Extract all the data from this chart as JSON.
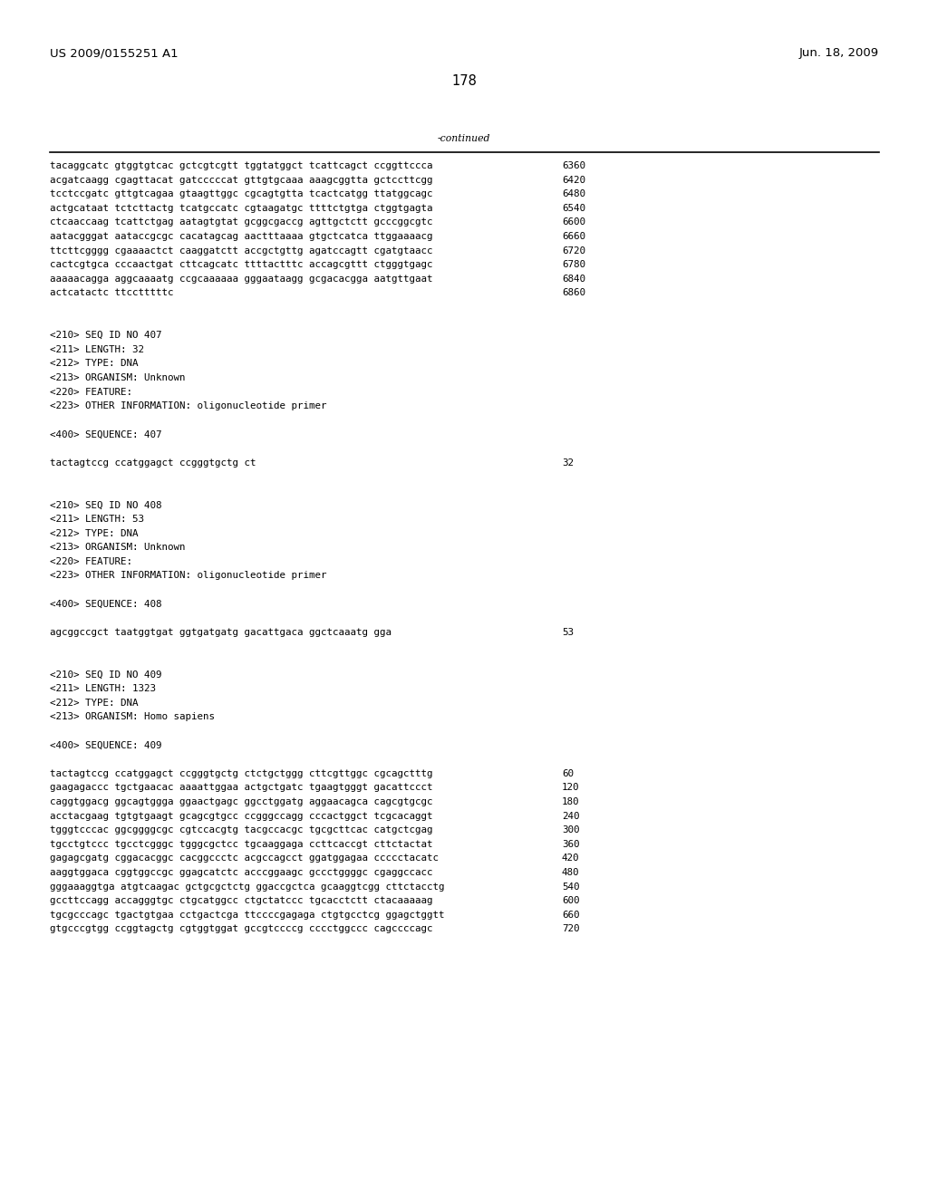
{
  "header_left": "US 2009/0155251 A1",
  "header_right": "Jun. 18, 2009",
  "page_number": "178",
  "continued_label": "-continued",
  "background_color": "#ffffff",
  "text_color": "#000000",
  "font_size_header": 9.5,
  "font_size_body": 7.8,
  "font_size_page": 10.5,
  "content_lines": [
    {
      "text": "tacaggcatc gtggtgtcac gctcgtcgtt tggtatggct tcattcagct ccggttccca",
      "num": "6360"
    },
    {
      "text": "acgatcaagg cgagttacat gatcccccat gttgtgcaaa aaagcggtta gctccttcgg",
      "num": "6420"
    },
    {
      "text": "tcctccgatc gttgtcagaa gtaagttggc cgcagtgtta tcactcatgg ttatggcagc",
      "num": "6480"
    },
    {
      "text": "actgcataat tctcttactg tcatgccatc cgtaagatgc ttttctgtga ctggtgagta",
      "num": "6540"
    },
    {
      "text": "ctcaaccaag tcattctgag aatagtgtat gcggcgaccg agttgctctt gcccggcgtc",
      "num": "6600"
    },
    {
      "text": "aatacgggat aataccgcgc cacatagcag aactttaaaa gtgctcatca ttggaaaacg",
      "num": "6660"
    },
    {
      "text": "ttcttcgggg cgaaaactct caaggatctt accgctgttg agatccagtt cgatgtaacc",
      "num": "6720"
    },
    {
      "text": "cactcgtgca cccaactgat cttcagcatc ttttactttc accagcgttt ctgggtgagc",
      "num": "6780"
    },
    {
      "text": "aaaaacagga aggcaaaatg ccgcaaaaaa gggaataagg gcgacacgga aatgttgaat",
      "num": "6840"
    },
    {
      "text": "actcatactc ttcctttttc",
      "num": "6860"
    },
    {
      "text": "",
      "num": ""
    },
    {
      "text": "",
      "num": ""
    },
    {
      "text": "<210> SEQ ID NO 407",
      "num": ""
    },
    {
      "text": "<211> LENGTH: 32",
      "num": ""
    },
    {
      "text": "<212> TYPE: DNA",
      "num": ""
    },
    {
      "text": "<213> ORGANISM: Unknown",
      "num": ""
    },
    {
      "text": "<220> FEATURE:",
      "num": ""
    },
    {
      "text": "<223> OTHER INFORMATION: oligonucleotide primer",
      "num": ""
    },
    {
      "text": "",
      "num": ""
    },
    {
      "text": "<400> SEQUENCE: 407",
      "num": ""
    },
    {
      "text": "",
      "num": ""
    },
    {
      "text": "tactagtccg ccatggagct ccgggtgctg ct",
      "num": "32"
    },
    {
      "text": "",
      "num": ""
    },
    {
      "text": "",
      "num": ""
    },
    {
      "text": "<210> SEQ ID NO 408",
      "num": ""
    },
    {
      "text": "<211> LENGTH: 53",
      "num": ""
    },
    {
      "text": "<212> TYPE: DNA",
      "num": ""
    },
    {
      "text": "<213> ORGANISM: Unknown",
      "num": ""
    },
    {
      "text": "<220> FEATURE:",
      "num": ""
    },
    {
      "text": "<223> OTHER INFORMATION: oligonucleotide primer",
      "num": ""
    },
    {
      "text": "",
      "num": ""
    },
    {
      "text": "<400> SEQUENCE: 408",
      "num": ""
    },
    {
      "text": "",
      "num": ""
    },
    {
      "text": "agcggccgct taatggtgat ggtgatgatg gacattgaca ggctcaaatg gga",
      "num": "53"
    },
    {
      "text": "",
      "num": ""
    },
    {
      "text": "",
      "num": ""
    },
    {
      "text": "<210> SEQ ID NO 409",
      "num": ""
    },
    {
      "text": "<211> LENGTH: 1323",
      "num": ""
    },
    {
      "text": "<212> TYPE: DNA",
      "num": ""
    },
    {
      "text": "<213> ORGANISM: Homo sapiens",
      "num": ""
    },
    {
      "text": "",
      "num": ""
    },
    {
      "text": "<400> SEQUENCE: 409",
      "num": ""
    },
    {
      "text": "",
      "num": ""
    },
    {
      "text": "tactagtccg ccatggagct ccgggtgctg ctctgctggg cttcgttggc cgcagctttg",
      "num": "60"
    },
    {
      "text": "gaagagaccc tgctgaacac aaaattggaa actgctgatc tgaagtgggt gacattccct",
      "num": "120"
    },
    {
      "text": "caggtggacg ggcagtggga ggaactgagc ggcctggatg aggaacagca cagcgtgcgc",
      "num": "180"
    },
    {
      "text": "acctacgaag tgtgtgaagt gcagcgtgcc ccgggccagg cccactggct tcgcacaggt",
      "num": "240"
    },
    {
      "text": "tgggtcccac ggcggggcgc cgtccacgtg tacgccacgc tgcgcttcac catgctcgag",
      "num": "300"
    },
    {
      "text": "tgcctgtccc tgcctcgggc tgggcgctcc tgcaaggaga ccttcaccgt cttctactat",
      "num": "360"
    },
    {
      "text": "gagagcgatg cggacacggc cacggccctc acgccagcct ggatggagaa ccccctacatc",
      "num": "420"
    },
    {
      "text": "aaggtggaca cggtggccgc ggagcatctc acccggaagc gccctggggc cgaggccacc",
      "num": "480"
    },
    {
      "text": "gggaaaggtga atgtcaagac gctgcgctctg ggaccgctca gcaaggtcgg cttctacctg",
      "num": "540"
    },
    {
      "text": "gccttccagg accagggtgc ctgcatggcc ctgctatccc tgcacctctt ctacaaaaag",
      "num": "600"
    },
    {
      "text": "tgcgcccagc tgactgtgaa cctgactcga ttccccgagaga ctgtgcctcg ggagctggtt",
      "num": "660"
    },
    {
      "text": "gtgcccgtgg ccggtagctg cgtggtggat gccgtccccg cccctggccc cagccccagc",
      "num": "720"
    }
  ]
}
